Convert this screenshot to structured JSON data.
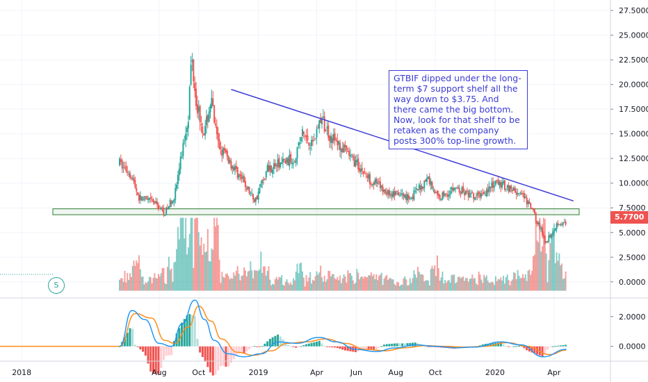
{
  "colors": {
    "up": "#26a69a",
    "down": "#ef5350",
    "trendline": "#3b3bd6",
    "support_zone": "#2e7d32",
    "macd_line": "#2196f3",
    "signal_line": "#ff8c1a",
    "grid": "#f0f3fa",
    "axis_text": "#131722"
  },
  "annotation": {
    "text": "GTBIF dipped under the long-term $7 support shelf all the way down to $3.75. And there came the big bottom. Now, look for that shelf to be retaken as the company posts 300% top-line growth."
  },
  "price_badge": "5.7700",
  "marker_label": "S",
  "chart_data": [
    {
      "type": "candlestick",
      "title": "",
      "ticker": "GTBIF",
      "x_tick_labels": [
        "2018",
        "Aug",
        "Oct",
        "2019",
        "Apr",
        "Jun",
        "Aug",
        "Oct",
        "2020",
        "Apr"
      ],
      "y_tick_labels": [
        "27.5000",
        "25.0000",
        "22.5000",
        "20.0000",
        "17.5000",
        "15.0000",
        "12.5000",
        "10.0000",
        "7.5000",
        "5.0000",
        "2.5000",
        "0.0000"
      ],
      "ylim": [
        -1,
        28
      ],
      "last_price": 5.77,
      "support_zone": [
        6.8,
        7.4
      ],
      "trendline": [
        {
          "date": "2018-11-20",
          "value": 19.5
        },
        {
          "date": "2020-05-01",
          "value": 8.2
        }
      ],
      "price_path": [
        {
          "date": "2018-06-01",
          "value": 12.0
        },
        {
          "date": "2018-06-18",
          "value": 11.0
        },
        {
          "date": "2018-07-01",
          "value": 8.5
        },
        {
          "date": "2018-07-25",
          "value": 8.0
        },
        {
          "date": "2018-08-10",
          "value": 7.0
        },
        {
          "date": "2018-08-25",
          "value": 8.8
        },
        {
          "date": "2018-09-05",
          "value": 13.0
        },
        {
          "date": "2018-09-15",
          "value": 17.0
        },
        {
          "date": "2018-09-20",
          "value": 23.0
        },
        {
          "date": "2018-09-28",
          "value": 18.0
        },
        {
          "date": "2018-10-10",
          "value": 15.0
        },
        {
          "date": "2018-10-20",
          "value": 18.5
        },
        {
          "date": "2018-10-30",
          "value": 14.0
        },
        {
          "date": "2018-11-15",
          "value": 12.5
        },
        {
          "date": "2018-12-10",
          "value": 10.0
        },
        {
          "date": "2018-12-27",
          "value": 8.2
        },
        {
          "date": "2019-01-15",
          "value": 11.5
        },
        {
          "date": "2019-02-05",
          "value": 12.0
        },
        {
          "date": "2019-02-25",
          "value": 12.5
        },
        {
          "date": "2019-03-10",
          "value": 15.0
        },
        {
          "date": "2019-03-25",
          "value": 14.0
        },
        {
          "date": "2019-04-07",
          "value": 16.5
        },
        {
          "date": "2019-04-20",
          "value": 15.0
        },
        {
          "date": "2019-05-10",
          "value": 13.5
        },
        {
          "date": "2019-06-01",
          "value": 12.0
        },
        {
          "date": "2019-06-20",
          "value": 10.5
        },
        {
          "date": "2019-07-20",
          "value": 9.0
        },
        {
          "date": "2019-08-25",
          "value": 8.6
        },
        {
          "date": "2019-09-20",
          "value": 10.5
        },
        {
          "date": "2019-10-05",
          "value": 8.5
        },
        {
          "date": "2019-11-01",
          "value": 9.5
        },
        {
          "date": "2019-12-01",
          "value": 8.5
        },
        {
          "date": "2020-01-05",
          "value": 10.0
        },
        {
          "date": "2020-01-25",
          "value": 9.5
        },
        {
          "date": "2020-02-15",
          "value": 8.5
        },
        {
          "date": "2020-02-28",
          "value": 7.2
        },
        {
          "date": "2020-03-10",
          "value": 5.5
        },
        {
          "date": "2020-03-19",
          "value": 4.0
        },
        {
          "date": "2020-03-30",
          "value": 5.2
        },
        {
          "date": "2020-04-08",
          "value": 6.1
        },
        {
          "date": "2020-04-20",
          "value": 5.77
        }
      ],
      "volume_series": true,
      "legend": "none",
      "grid": true
    },
    {
      "type": "line",
      "title": "",
      "indicator": "MACD",
      "y_tick_labels": [
        "2.0000",
        "0.0000"
      ],
      "ylim": [
        -0.9,
        3.2
      ],
      "series": [
        {
          "color": "#2196f3",
          "points": [
            {
              "date": "2018-06-01",
              "value": 0.0
            },
            {
              "date": "2018-06-20",
              "value": 2.4
            },
            {
              "date": "2018-07-10",
              "value": 1.8
            },
            {
              "date": "2018-08-01",
              "value": 0.2
            },
            {
              "date": "2018-08-20",
              "value": 0.0
            },
            {
              "date": "2018-09-05",
              "value": 1.5
            },
            {
              "date": "2018-09-25",
              "value": 3.1
            },
            {
              "date": "2018-10-10",
              "value": 1.8
            },
            {
              "date": "2018-10-25",
              "value": 0.4
            },
            {
              "date": "2018-11-15",
              "value": -0.5
            },
            {
              "date": "2018-12-10",
              "value": -0.7
            },
            {
              "date": "2019-01-05",
              "value": -0.5
            },
            {
              "date": "2019-02-01",
              "value": 0.3
            },
            {
              "date": "2019-03-01",
              "value": 0.2
            },
            {
              "date": "2019-04-05",
              "value": 0.6
            },
            {
              "date": "2019-05-01",
              "value": 0.3
            },
            {
              "date": "2019-06-01",
              "value": -0.2
            },
            {
              "date": "2019-07-01",
              "value": -0.35
            },
            {
              "date": "2019-08-01",
              "value": -0.1
            },
            {
              "date": "2019-09-01",
              "value": 0.1
            },
            {
              "date": "2019-10-01",
              "value": 0.0
            },
            {
              "date": "2019-11-01",
              "value": -0.1
            },
            {
              "date": "2019-12-01",
              "value": -0.05
            },
            {
              "date": "2020-01-10",
              "value": 0.3
            },
            {
              "date": "2020-02-10",
              "value": 0.1
            },
            {
              "date": "2020-03-15",
              "value": -0.7
            },
            {
              "date": "2020-04-20",
              "value": -0.2
            }
          ]
        },
        {
          "color": "#ff8c1a",
          "points": [
            {
              "date": "2018-06-01",
              "value": 0.0
            },
            {
              "date": "2018-06-25",
              "value": 2.2
            },
            {
              "date": "2018-07-20",
              "value": 1.9
            },
            {
              "date": "2018-08-10",
              "value": 0.4
            },
            {
              "date": "2018-08-25",
              "value": 0.2
            },
            {
              "date": "2018-09-15",
              "value": 1.3
            },
            {
              "date": "2018-10-01",
              "value": 2.7
            },
            {
              "date": "2018-10-20",
              "value": 1.7
            },
            {
              "date": "2018-11-05",
              "value": 0.5
            },
            {
              "date": "2018-11-30",
              "value": -0.4
            },
            {
              "date": "2018-12-25",
              "value": -0.6
            },
            {
              "date": "2019-01-20",
              "value": -0.3
            },
            {
              "date": "2019-02-15",
              "value": 0.2
            },
            {
              "date": "2019-03-15",
              "value": 0.3
            },
            {
              "date": "2019-04-15",
              "value": 0.5
            },
            {
              "date": "2019-05-15",
              "value": 0.2
            },
            {
              "date": "2019-06-15",
              "value": -0.2
            },
            {
              "date": "2019-07-15",
              "value": -0.3
            },
            {
              "date": "2019-08-15",
              "value": -0.1
            },
            {
              "date": "2019-09-15",
              "value": 0.05
            },
            {
              "date": "2019-10-15",
              "value": 0.0
            },
            {
              "date": "2019-11-15",
              "value": -0.05
            },
            {
              "date": "2019-12-15",
              "value": 0.0
            },
            {
              "date": "2020-01-20",
              "value": 0.25
            },
            {
              "date": "2020-02-20",
              "value": 0.0
            },
            {
              "date": "2020-03-25",
              "value": -0.55
            },
            {
              "date": "2020-04-20",
              "value": -0.25
            }
          ]
        }
      ],
      "histogram": true,
      "legend": "none",
      "grid": true
    }
  ]
}
